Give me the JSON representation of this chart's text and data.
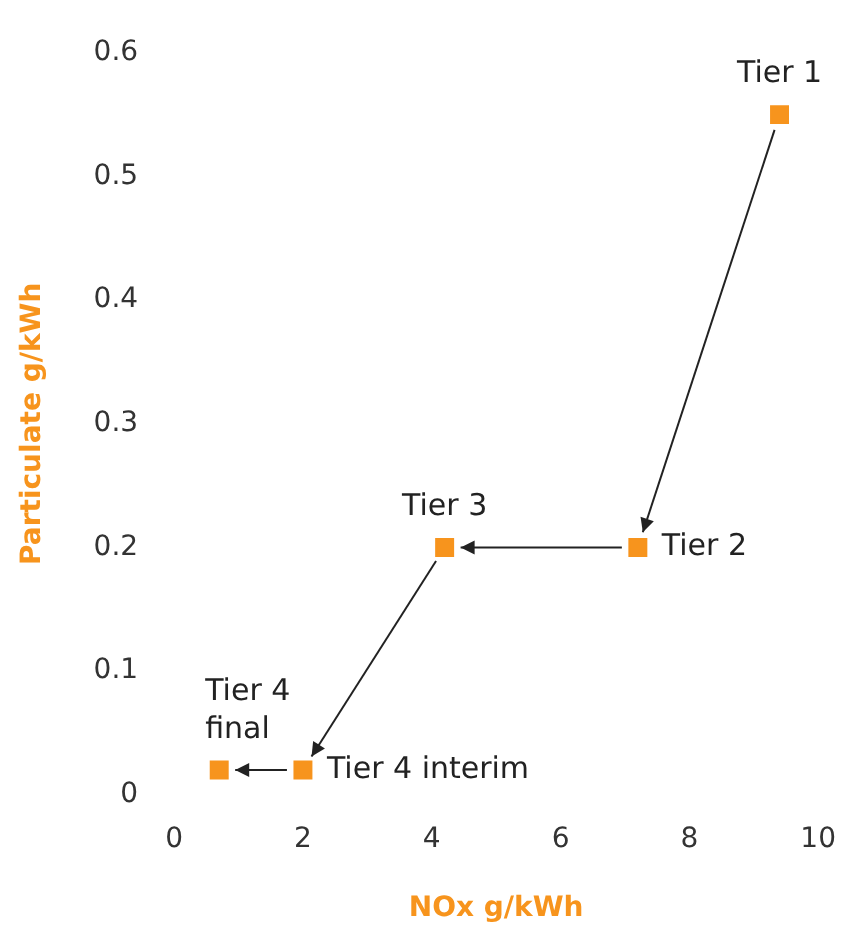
{
  "chart_data": {
    "type": "scatter",
    "xlabel": "NOx g/kWh",
    "ylabel": "Particulate g/kWh",
    "x": [
      9.4,
      7.2,
      4.2,
      2.0,
      0.7
    ],
    "series": [
      {
        "color": "#f7941d",
        "values": [
          0.55,
          0.2,
          0.2,
          0.02,
          0.02
        ]
      }
    ],
    "xlim": [
      0,
      10
    ],
    "xticks": [
      0,
      2,
      4,
      6,
      8,
      10
    ],
    "ylim": [
      0,
      0.6
    ],
    "yticks": [
      0,
      0.1,
      0.2,
      0.3,
      0.4,
      0.5,
      0.6
    ],
    "annotations": [
      {
        "text": "Tier 1",
        "x": 9.4,
        "y": 0.55
      },
      {
        "text": "Tier 2",
        "x": 7.2,
        "y": 0.2
      },
      {
        "text": "Tier 3",
        "x": 4.2,
        "y": 0.2
      },
      {
        "text": "Tier 4 interim",
        "x": 2.0,
        "y": 0.02
      },
      {
        "text": "Tier 4 final",
        "x": 0.7,
        "y": 0.02
      }
    ],
    "grid": false,
    "legend": false,
    "marker": "square"
  }
}
